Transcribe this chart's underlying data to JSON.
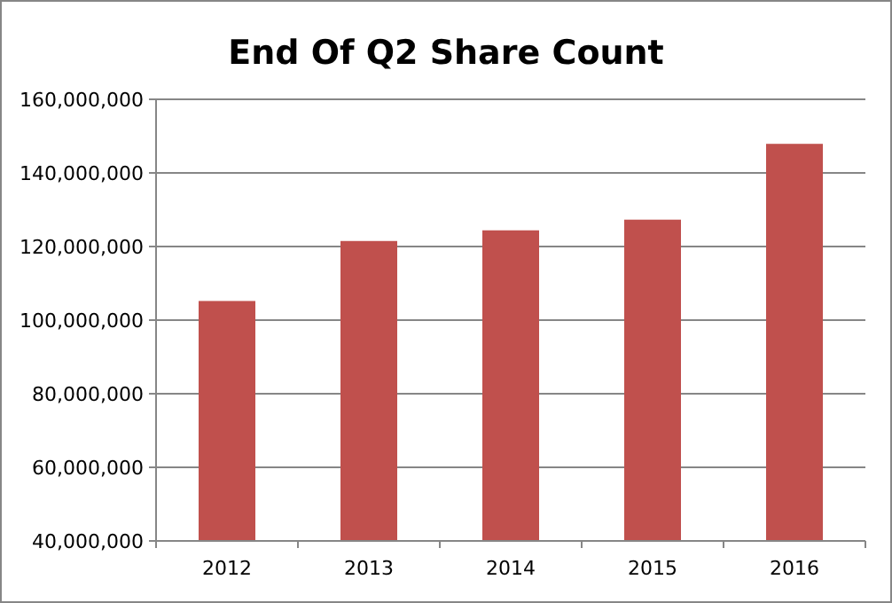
{
  "chart_data": {
    "type": "bar",
    "title": "End Of Q2 Share Count",
    "categories": [
      "2012",
      "2013",
      "2014",
      "2015",
      "2016"
    ],
    "values": [
      105200000,
      121500000,
      124400000,
      127300000,
      147900000
    ],
    "color": "#c0504d",
    "ylim": [
      40000000,
      160000000
    ],
    "yticks": [
      {
        "value": 40000000,
        "label": "40,000,000"
      },
      {
        "value": 60000000,
        "label": "60,000,000"
      },
      {
        "value": 80000000,
        "label": "80,000,000"
      },
      {
        "value": 100000000,
        "label": "100,000,000"
      },
      {
        "value": 120000000,
        "label": "120,000,000"
      },
      {
        "value": 140000000,
        "label": "140,000,000"
      },
      {
        "value": 160000000,
        "label": "160,000,000"
      }
    ],
    "grid": "y"
  }
}
